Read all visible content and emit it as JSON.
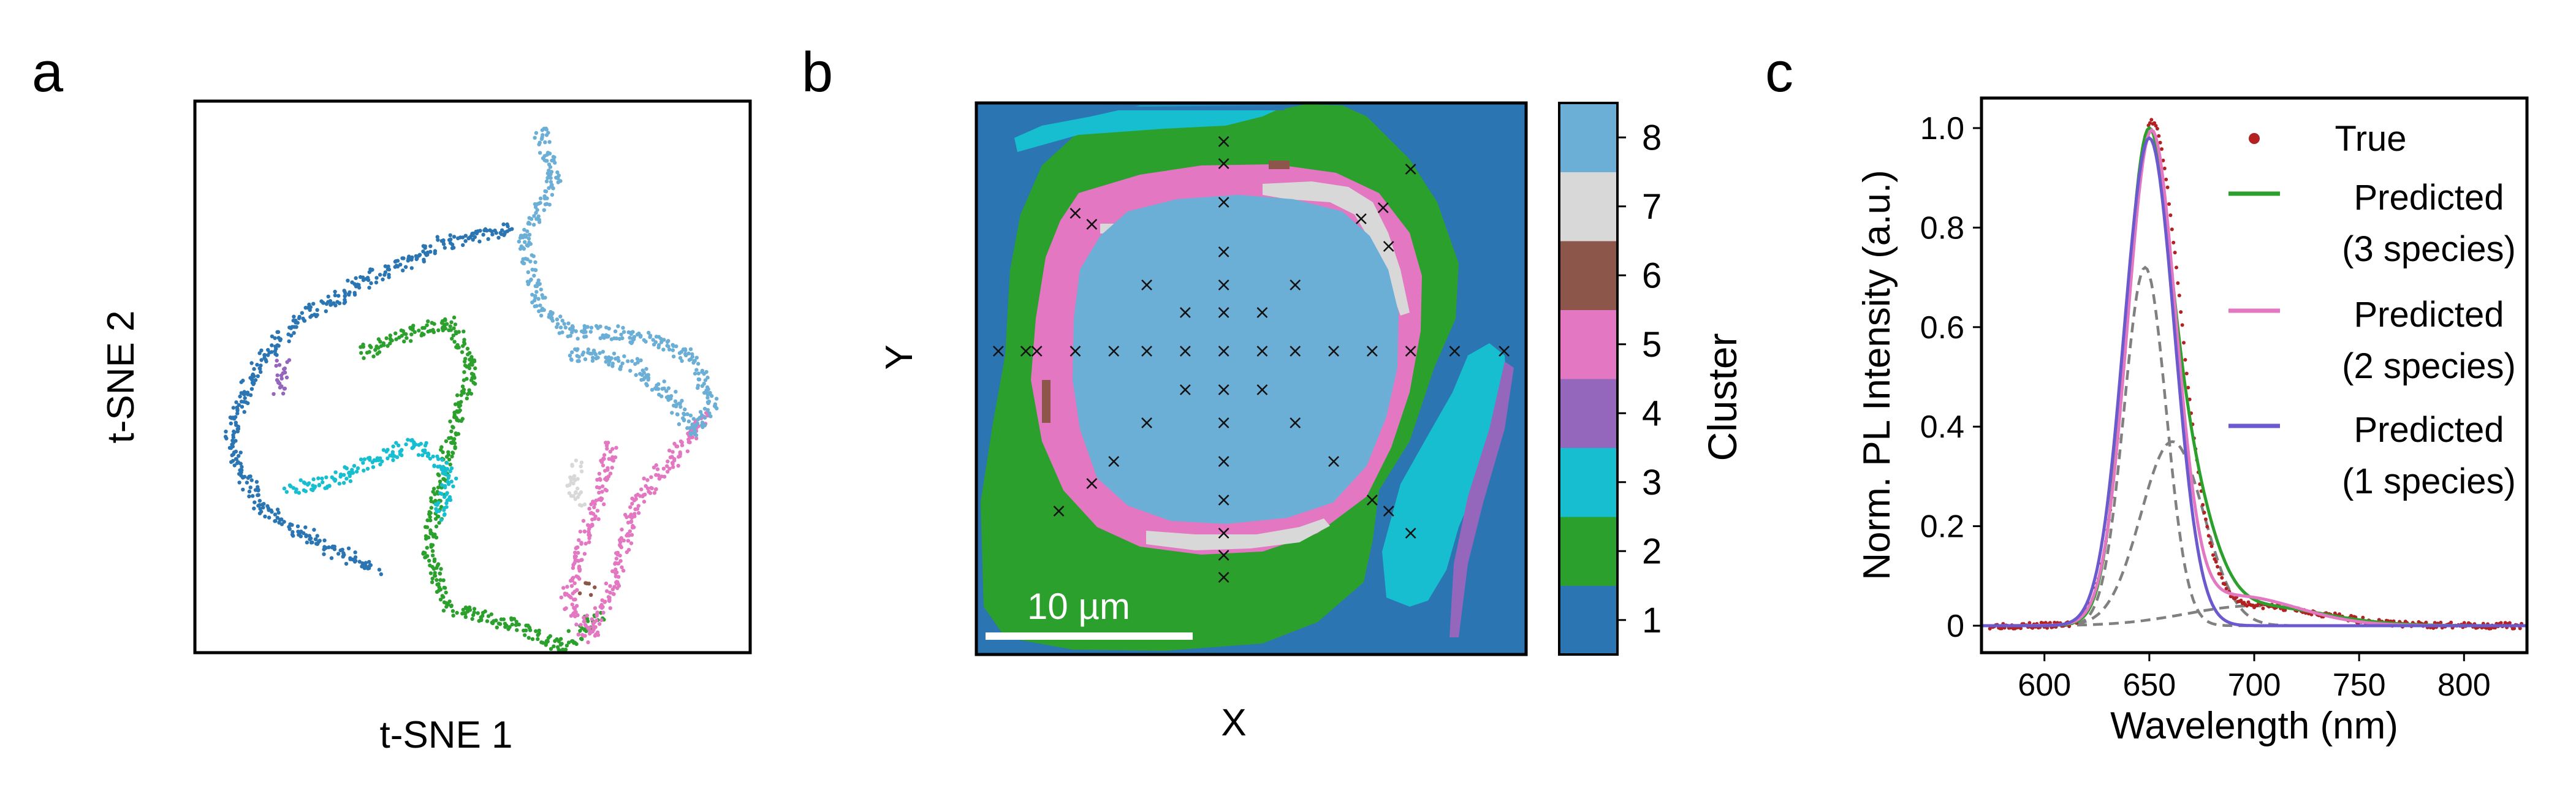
{
  "panels": {
    "a": {
      "letter": "a"
    },
    "b": {
      "letter": "b"
    },
    "c": {
      "letter": "c"
    }
  },
  "colors": {
    "c1": "#2b75b3",
    "c2": "#2ca02c",
    "c3": "#17becf",
    "c4": "#9467bd",
    "c5": "#e377c2",
    "c6": "#8c564b",
    "c7": "#d8d8d8",
    "c8": "#6baed6",
    "true_points": "#b22222",
    "pred3": "#2ca02c",
    "pred2": "#e377c2",
    "pred1": "#6a5acd",
    "dashed": "#808080"
  },
  "chart_data": [
    {
      "type": "scatter",
      "panel": "a",
      "xlabel": "t-SNE 1",
      "ylabel": "t-SNE 2",
      "grid": false,
      "legend": "none",
      "series": [
        {
          "cluster": 1,
          "color": "#2b75b3",
          "path": [
            [
              0.57,
              0.23
            ],
            [
              0.44,
              0.26
            ],
            [
              0.3,
              0.33
            ],
            [
              0.18,
              0.4
            ],
            [
              0.1,
              0.5
            ],
            [
              0.06,
              0.62
            ],
            [
              0.12,
              0.74
            ],
            [
              0.24,
              0.81
            ],
            [
              0.33,
              0.85
            ]
          ]
        },
        {
          "cluster": 2,
          "color": "#2ca02c",
          "path": [
            [
              0.3,
              0.46
            ],
            [
              0.36,
              0.43
            ],
            [
              0.46,
              0.4
            ],
            [
              0.5,
              0.48
            ],
            [
              0.47,
              0.58
            ],
            [
              0.44,
              0.7
            ],
            [
              0.42,
              0.82
            ],
            [
              0.46,
              0.92
            ],
            [
              0.58,
              0.95
            ],
            [
              0.66,
              0.99
            ],
            [
              0.73,
              0.93
            ]
          ]
        },
        {
          "cluster": 3,
          "color": "#17becf",
          "path": [
            [
              0.17,
              0.7
            ],
            [
              0.25,
              0.69
            ],
            [
              0.32,
              0.65
            ],
            [
              0.4,
              0.62
            ],
            [
              0.46,
              0.68
            ],
            [
              0.44,
              0.76
            ]
          ]
        },
        {
          "cluster": 4,
          "color": "#9467bd",
          "path": [
            [
              0.16,
              0.47
            ],
            [
              0.15,
              0.53
            ]
          ]
        },
        {
          "cluster": 5,
          "color": "#e377c2",
          "path": [
            [
              0.75,
              0.62
            ],
            [
              0.73,
              0.72
            ],
            [
              0.7,
              0.8
            ],
            [
              0.67,
              0.9
            ],
            [
              0.71,
              0.97
            ],
            [
              0.76,
              0.87
            ],
            [
              0.79,
              0.73
            ],
            [
              0.86,
              0.65
            ],
            [
              0.92,
              0.57
            ]
          ]
        },
        {
          "cluster": 6,
          "color": "#8c564b",
          "path": [
            [
              0.7,
              0.88
            ],
            [
              0.71,
              0.89
            ]
          ]
        },
        {
          "cluster": 7,
          "color": "#d8d8d8",
          "path": [
            [
              0.69,
              0.66
            ],
            [
              0.68,
              0.7
            ],
            [
              0.7,
              0.73
            ]
          ]
        },
        {
          "cluster": 8,
          "color": "#6baed6",
          "path": [
            [
              0.62,
              0.05
            ],
            [
              0.65,
              0.14
            ],
            [
              0.59,
              0.25
            ],
            [
              0.62,
              0.37
            ],
            [
              0.68,
              0.42
            ],
            [
              0.76,
              0.42
            ],
            [
              0.85,
              0.44
            ],
            [
              0.9,
              0.47
            ],
            [
              0.93,
              0.55
            ],
            [
              0.9,
              0.6
            ],
            [
              0.85,
              0.53
            ],
            [
              0.79,
              0.48
            ],
            [
              0.72,
              0.46
            ],
            [
              0.67,
              0.46
            ]
          ]
        }
      ]
    },
    {
      "type": "heatmap",
      "panel": "b",
      "xlabel": "X",
      "ylabel": "Y",
      "scalebar_label": "10 µm",
      "colorbar_label": "Cluster",
      "colorbar_ticks": [
        "1",
        "2",
        "3",
        "4",
        "5",
        "6",
        "7",
        "8"
      ],
      "regions": [
        {
          "cluster": 1,
          "description": "background"
        },
        {
          "cluster": 2,
          "description": "outer ring"
        },
        {
          "cluster": 3,
          "description": "top and right edge bands"
        },
        {
          "cluster": 4,
          "description": "right edge streak"
        },
        {
          "cluster": 5,
          "description": "inner ring"
        },
        {
          "cluster": 6,
          "description": "small patches"
        },
        {
          "cluster": 7,
          "description": "grey patches on inner ring"
        },
        {
          "cluster": 8,
          "description": "center"
        }
      ],
      "markers": [
        [
          0.45,
          0.07
        ],
        [
          0.45,
          0.11
        ],
        [
          0.45,
          0.18
        ],
        [
          0.79,
          0.12
        ],
        [
          0.18,
          0.2
        ],
        [
          0.21,
          0.22
        ],
        [
          0.7,
          0.21
        ],
        [
          0.74,
          0.19
        ],
        [
          0.75,
          0.26
        ],
        [
          0.31,
          0.33
        ],
        [
          0.45,
          0.33
        ],
        [
          0.58,
          0.33
        ],
        [
          0.38,
          0.38
        ],
        [
          0.45,
          0.38
        ],
        [
          0.52,
          0.38
        ],
        [
          0.45,
          0.27
        ],
        [
          0.04,
          0.45
        ],
        [
          0.09,
          0.45
        ],
        [
          0.11,
          0.45
        ],
        [
          0.18,
          0.45
        ],
        [
          0.25,
          0.45
        ],
        [
          0.31,
          0.45
        ],
        [
          0.38,
          0.45
        ],
        [
          0.45,
          0.45
        ],
        [
          0.52,
          0.45
        ],
        [
          0.58,
          0.45
        ],
        [
          0.65,
          0.45
        ],
        [
          0.72,
          0.45
        ],
        [
          0.79,
          0.45
        ],
        [
          0.87,
          0.45
        ],
        [
          0.96,
          0.45
        ],
        [
          0.38,
          0.52
        ],
        [
          0.45,
          0.52
        ],
        [
          0.52,
          0.52
        ],
        [
          0.31,
          0.58
        ],
        [
          0.45,
          0.58
        ],
        [
          0.58,
          0.58
        ],
        [
          0.25,
          0.65
        ],
        [
          0.45,
          0.65
        ],
        [
          0.65,
          0.65
        ],
        [
          0.21,
          0.69
        ],
        [
          0.45,
          0.72
        ],
        [
          0.72,
          0.72
        ],
        [
          0.15,
          0.74
        ],
        [
          0.75,
          0.74
        ],
        [
          0.45,
          0.78
        ],
        [
          0.79,
          0.78
        ],
        [
          0.45,
          0.82
        ],
        [
          0.45,
          0.86
        ]
      ]
    },
    {
      "type": "line",
      "panel": "c",
      "xlabel": "Wavelength (nm)",
      "ylabel": "Norm. PL Intensity (a.u.)",
      "xlim": [
        570,
        830
      ],
      "ylim": [
        0,
        1.0
      ],
      "xticks": [
        "600",
        "650",
        "700",
        "750",
        "800"
      ],
      "yticks": [
        "0",
        "0.2",
        "0.4",
        "0.6",
        "0.8",
        "1.0"
      ],
      "legend": "top-right",
      "legend_entries": [
        {
          "label": "True"
        },
        {
          "label": "Predicted",
          "sub": "(3 species)"
        },
        {
          "label": "Predicted",
          "sub": "(2 species)"
        },
        {
          "label": "Predicted",
          "sub": "(1 species)"
        }
      ],
      "true_peak": {
        "center": 651,
        "width_left": 11.5,
        "width_right": 14,
        "amplitude": 1.0,
        "tail": {
          "center": 700,
          "width": 32,
          "amplitude": 0.04
        }
      },
      "series": [
        {
          "name": "True",
          "style": "points",
          "color": "#b22222"
        },
        {
          "name": "Predicted (3 species)",
          "style": "line",
          "color": "#2ca02c",
          "components": [
            {
              "center": 648,
              "width": 10,
              "amplitude": 0.72
            },
            {
              "center": 661,
              "width": 15,
              "amplitude": 0.37
            },
            {
              "center": 700,
              "width": 32,
              "amplitude": 0.04
            }
          ]
        },
        {
          "name": "Predicted (2 species)",
          "style": "line",
          "color": "#e377c2",
          "components": [
            {
              "center": 651,
              "width": 11.5,
              "amplitude": 0.97
            },
            {
              "center": 690,
              "width": 30,
              "amplitude": 0.06
            }
          ]
        },
        {
          "name": "Predicted (1 species)",
          "style": "line",
          "color": "#6a5acd",
          "components": [
            {
              "center": 650,
              "width": 12,
              "amplitude": 0.98
            }
          ]
        },
        {
          "name": "component 1",
          "style": "dashed",
          "color": "#808080",
          "components": [
            {
              "center": 648,
              "width": 10,
              "amplitude": 0.72
            }
          ]
        },
        {
          "name": "component 2",
          "style": "dashed",
          "color": "#808080",
          "components": [
            {
              "center": 661,
              "width": 15,
              "amplitude": 0.37
            }
          ]
        },
        {
          "name": "component 3",
          "style": "dashed",
          "color": "#808080",
          "components": [
            {
              "center": 700,
              "width": 32,
              "amplitude": 0.04
            }
          ]
        }
      ]
    }
  ]
}
